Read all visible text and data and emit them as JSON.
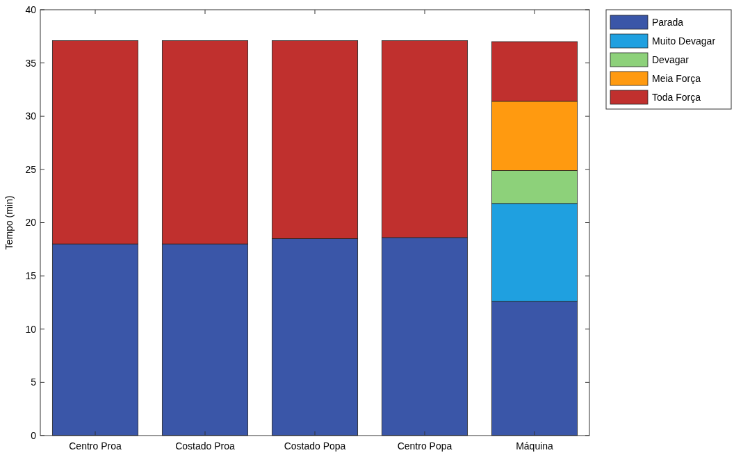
{
  "chart_data": {
    "type": "bar",
    "stacked": true,
    "ylabel": "Tempo (min)",
    "categories": [
      "Centro Proa",
      "Costado Proa",
      "Costado Popa",
      "Centro Popa",
      "Máquina"
    ],
    "series": [
      {
        "name": "Parada",
        "color": "#3a56a8",
        "values": [
          18.0,
          18.0,
          18.5,
          18.6,
          12.6
        ]
      },
      {
        "name": "Muito Devagar",
        "color": "#1fa0e0",
        "values": [
          0,
          0,
          0,
          0,
          9.2
        ]
      },
      {
        "name": "Devagar",
        "color": "#8dd17a",
        "values": [
          0,
          0,
          0,
          0,
          3.1
        ]
      },
      {
        "name": "Meia Força",
        "color": "#ff9a10",
        "values": [
          0,
          0,
          0,
          0,
          6.5
        ]
      },
      {
        "name": "Toda Força",
        "color": "#c0302e",
        "values": [
          19.1,
          19.1,
          18.6,
          18.5,
          5.6
        ]
      }
    ],
    "ylim": [
      0,
      40
    ],
    "yticks": [
      0,
      5,
      10,
      15,
      20,
      25,
      30,
      35,
      40
    ],
    "grid": false,
    "legend": "top right"
  }
}
